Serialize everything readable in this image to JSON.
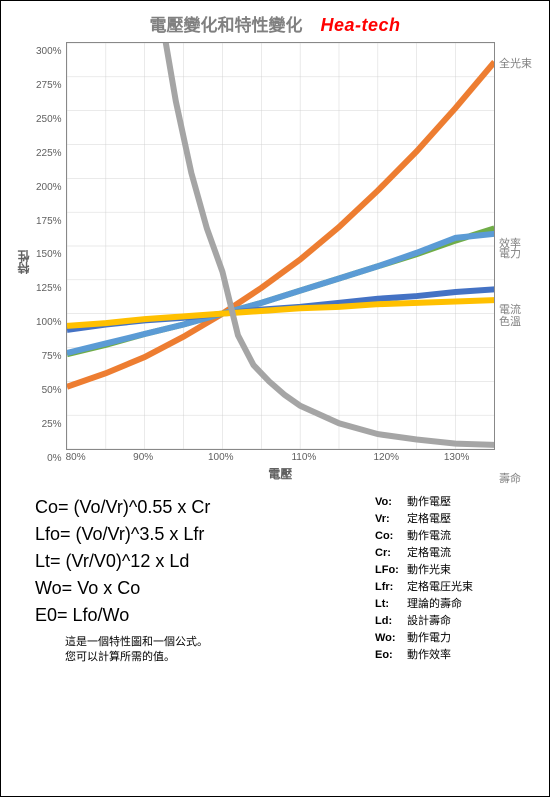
{
  "header": {
    "title": "電壓變化和特性變化",
    "logo": "Hea-tech"
  },
  "chart": {
    "type": "line",
    "y_axis_title": "特性",
    "x_axis_title": "電壓",
    "xlim": [
      80,
      135
    ],
    "ylim": [
      0,
      300
    ],
    "xtick_step": 10,
    "ytick_step": 25,
    "xticks": [
      "80%",
      "90%",
      "100%",
      "110%",
      "120%",
      "130%"
    ],
    "yticks": [
      "300%",
      "275%",
      "250%",
      "225%",
      "200%",
      "175%",
      "150%",
      "125%",
      "100%",
      "75%",
      "50%",
      "25%",
      "0%"
    ],
    "background_color": "#ffffff",
    "grid_color": "#cccccc",
    "axis_color": "#888888",
    "tick_font_color": "#606060",
    "tick_fontsize": 10,
    "axis_title_fontsize": 12,
    "line_width": 2,
    "series": [
      {
        "name": "full_beam",
        "label": "全光束",
        "label_at_y": 286,
        "color": "#ed7d31",
        "x": [
          80,
          85,
          90,
          95,
          100,
          105,
          110,
          115,
          120,
          125,
          130,
          135
        ],
        "y": [
          46,
          56,
          68,
          83,
          100,
          119,
          140,
          164,
          191,
          220,
          252,
          286
        ]
      },
      {
        "name": "efficiency",
        "label": "效率",
        "label_at_y": 163,
        "color": "#70ad47",
        "x": [
          80,
          85,
          90,
          95,
          100,
          105,
          110,
          115,
          120,
          125,
          130,
          135
        ],
        "y": [
          70,
          77,
          85,
          92,
          100,
          108,
          117,
          126,
          135,
          144,
          154,
          163
        ]
      },
      {
        "name": "power",
        "label": "電力",
        "label_at_y": 156,
        "color": "#5b9bd5",
        "x": [
          80,
          85,
          90,
          95,
          100,
          105,
          110,
          115,
          120,
          125,
          130,
          135
        ],
        "y": [
          71,
          78,
          85,
          92,
          100,
          108,
          117,
          126,
          135,
          145,
          156,
          159
        ]
      },
      {
        "name": "current",
        "label": "電流",
        "label_at_y": 118,
        "color": "#4472c4",
        "x": [
          80,
          85,
          90,
          95,
          100,
          105,
          110,
          115,
          120,
          125,
          130,
          135
        ],
        "y": [
          88,
          92,
          95,
          97,
          100,
          103,
          105,
          108,
          111,
          113,
          116,
          118
        ]
      },
      {
        "name": "color_temp",
        "label": "色溫",
        "label_at_y": 110,
        "color": "#ffc000",
        "x": [
          80,
          85,
          90,
          95,
          100,
          105,
          110,
          115,
          120,
          125,
          130,
          135
        ],
        "y": [
          91,
          93,
          96,
          98,
          100,
          102,
          104,
          105,
          107,
          108,
          109,
          110
        ]
      },
      {
        "name": "life",
        "label": "壽命",
        "label_at_y": 3,
        "color": "#a5a5a5",
        "x": [
          80,
          82,
          84,
          86,
          88,
          90,
          92,
          94,
          96,
          98,
          100,
          102,
          104,
          106,
          108,
          110,
          115,
          120,
          125,
          130,
          135
        ],
        "y": [
          1455,
          1118,
          864,
          671,
          524,
          411,
          324,
          257,
          204,
          163,
          131,
          84,
          62,
          50,
          40,
          32,
          19,
          11,
          7,
          4,
          3
        ]
      }
    ]
  },
  "formulas": [
    "Co= (Vo/Vr)^0.55 x Cr",
    "Lfo= (Vo/Vr)^3.5   x Lfr",
    "Lt= (Vr/V0)^12     x Ld",
    "Wo=  Vo x Co",
    "E0=  Lfo/Wo"
  ],
  "formula_note": [
    "這是一個特性圖和一個公式。",
    "您可以計算所需的值。"
  ],
  "legend_defs": [
    {
      "key": "Vo:",
      "val": "動作電壓"
    },
    {
      "key": "Vr:",
      "val": "定格電壓"
    },
    {
      "key": "Co:",
      "val": "動作電流"
    },
    {
      "key": "Cr:",
      "val": "定格電流"
    },
    {
      "key": "LFo:",
      "val": "動作光束"
    },
    {
      "key": "Lfr:",
      "val": "定格電圧光束"
    },
    {
      "key": "Lt:",
      "val": "理論的壽命"
    },
    {
      "key": "Ld:",
      "val": "設計壽命"
    },
    {
      "key": "Wo:",
      "val": "動作電力"
    },
    {
      "key": "Eo:",
      "val": "動作效率"
    }
  ]
}
